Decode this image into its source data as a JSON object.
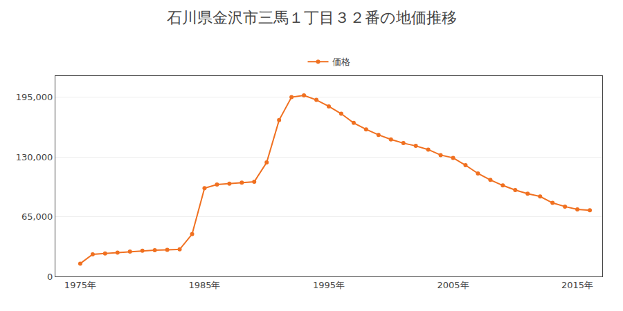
{
  "chart_data": {
    "type": "line",
    "title": "石川県金沢市三馬１丁目３２番の地価推移",
    "x": [
      1975,
      1976,
      1977,
      1978,
      1979,
      1980,
      1981,
      1982,
      1983,
      1984,
      1985,
      1986,
      1987,
      1988,
      1989,
      1990,
      1991,
      1992,
      1993,
      1994,
      1995,
      1996,
      1997,
      1998,
      1999,
      2000,
      2001,
      2002,
      2003,
      2004,
      2005,
      2006,
      2007,
      2008,
      2009,
      2010,
      2011,
      2012,
      2013,
      2014,
      2015,
      2016
    ],
    "series": [
      {
        "name": "価格",
        "color": "#f07020",
        "marker": "circle",
        "values": [
          14000,
          24000,
          25000,
          26000,
          27000,
          28000,
          28500,
          29000,
          29500,
          46000,
          96000,
          100000,
          101000,
          102000,
          103000,
          124000,
          170000,
          195000,
          197000,
          192000,
          185000,
          177000,
          167000,
          160000,
          154000,
          149000,
          145000,
          142000,
          138000,
          132000,
          129000,
          121000,
          112000,
          105000,
          99000,
          94000,
          90000,
          87000,
          80000,
          76000,
          73000,
          72000
        ]
      }
    ],
    "xlim": [
      1973,
      2017
    ],
    "xticks": [
      {
        "value": 1975,
        "label": "1975年"
      },
      {
        "value": 1985,
        "label": "1985年"
      },
      {
        "value": 1995,
        "label": "1995年"
      },
      {
        "value": 2005,
        "label": "2005年"
      },
      {
        "value": 2015,
        "label": "2015年"
      }
    ],
    "ylim": [
      0,
      218000
    ],
    "yticks": [
      0,
      {
        "value": 65000,
        "label": "65,000"
      },
      {
        "value": 130000,
        "label": "130,000"
      },
      {
        "value": 195000,
        "label": "195,000"
      }
    ],
    "grid": true,
    "legend": "top"
  }
}
